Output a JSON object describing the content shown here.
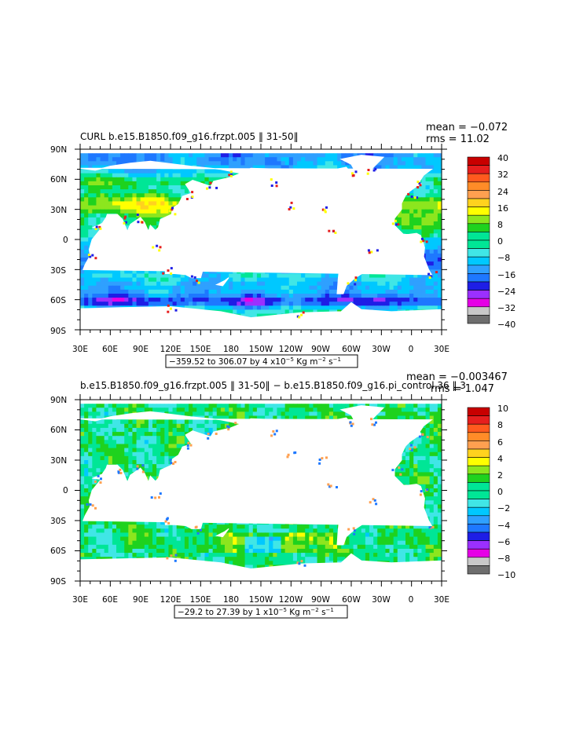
{
  "colors": {
    "land": "#ffffff",
    "frame": "#000000",
    "palette": [
      "#6e6e6e",
      "#c8c8c8",
      "#e600e6",
      "#9b30ff",
      "#1e1ee6",
      "#1e78ff",
      "#2fa0ff",
      "#00c8ff",
      "#40e6e6",
      "#00e696",
      "#1ed21e",
      "#8ce61e",
      "#ffff00",
      "#ffd21e",
      "#ffa050",
      "#ff8c28",
      "#ff5a1e",
      "#e61e1e",
      "#c80000"
    ]
  },
  "chart_data": [
    {
      "type": "heatmap",
      "title": "CURL b.e15.B1850.f09_g16.frzpt.005 ‖ 31-50‖",
      "stats": [
        "mean = −0.072",
        "rms = 11.02"
      ],
      "range_note": {
        "text": "−359.52 to 306.07 by 4 x10",
        "exp": "−5",
        "units_a": " Kg m",
        "units_exp": "−2",
        "units_b": " s",
        "s_exp": "−1"
      },
      "xlabel": "",
      "ylabel": "",
      "x_ticks": [
        "30E",
        "60E",
        "90E",
        "120E",
        "150E",
        "180",
        "150W",
        "120W",
        "90W",
        "60W",
        "30W",
        "0",
        "30E"
      ],
      "y_ticks": [
        "90N",
        "60N",
        "30N",
        "0",
        "30S",
        "60S",
        "90S"
      ],
      "colorbar_labels": [
        "40",
        "32",
        "24",
        "16",
        "8",
        "0",
        "−8",
        "−16",
        "−24",
        "−32",
        "−40"
      ],
      "levels": [
        -40,
        -36,
        -32,
        -28,
        -24,
        -20,
        -16,
        -12,
        -8,
        -4,
        0,
        4,
        8,
        12,
        16,
        20,
        24,
        28,
        32,
        36,
        40
      ]
    },
    {
      "type": "heatmap",
      "title": "b.e15.B1850.f09_g16.frzpt.005 ‖ 31-50‖ − b.e15.B1850.f09_g16.pi_control.36 ‖ 3",
      "stats": [
        "mean = −0.003467",
        "rms = 1.047"
      ],
      "range_note": {
        "text": "−29.2 to 27.39 by 1 x10",
        "exp": "−5",
        "units_a": " Kg m",
        "units_exp": "−2",
        "units_b": " s",
        "s_exp": "−1"
      },
      "xlabel": "",
      "ylabel": "",
      "x_ticks": [
        "30E",
        "60E",
        "90E",
        "120E",
        "150E",
        "180",
        "150W",
        "120W",
        "90W",
        "60W",
        "30W",
        "0",
        "30E"
      ],
      "y_ticks": [
        "90N",
        "60N",
        "30N",
        "0",
        "30S",
        "60S",
        "90S"
      ],
      "colorbar_labels": [
        "10",
        "8",
        "6",
        "4",
        "2",
        "0",
        "−2",
        "−4",
        "−6",
        "−8",
        "−10"
      ],
      "levels": [
        -10,
        -9,
        -8,
        -7,
        -6,
        -5,
        -4,
        -3,
        -2,
        -1,
        0,
        1,
        2,
        3,
        4,
        5,
        6,
        7,
        8,
        9,
        10
      ]
    }
  ]
}
